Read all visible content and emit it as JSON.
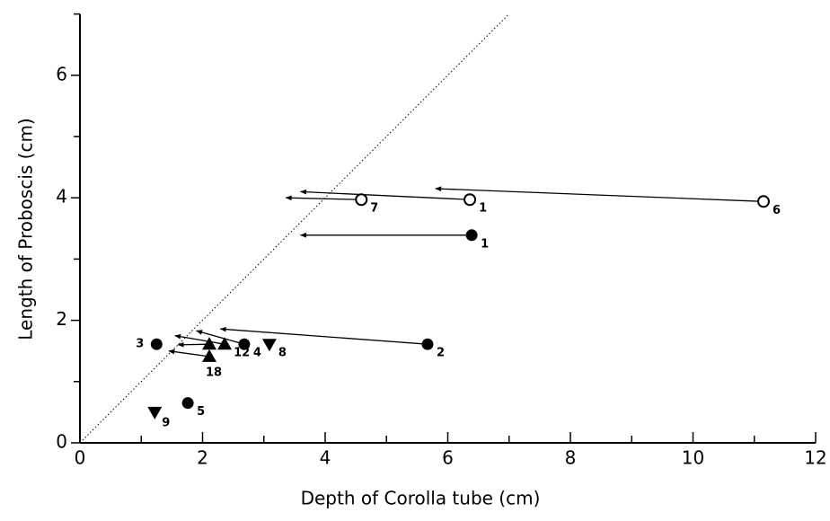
{
  "chart_data": {
    "type": "scatter",
    "xlabel": "Depth of Corolla tube (cm)",
    "ylabel": "Length of Proboscis (cm)",
    "xlim": [
      0,
      12
    ],
    "ylim": [
      0,
      7
    ],
    "xticks": [
      0,
      2,
      4,
      6,
      8,
      10,
      12
    ],
    "yticks": [
      0,
      2,
      4,
      6
    ],
    "xminorticks": [
      1,
      3,
      5,
      7,
      9,
      11
    ],
    "yminorticks": [
      1,
      3,
      5,
      7
    ],
    "reference_line": {
      "x": [
        0,
        7
      ],
      "y": [
        0,
        7
      ]
    },
    "series": [
      {
        "marker": "open-circle",
        "x": [
          4.59,
          6.36,
          11.15
        ],
        "y": [
          3.97,
          3.97,
          3.94
        ],
        "labels": [
          "7",
          "1",
          "6"
        ]
      },
      {
        "marker": "circle",
        "x": [
          6.39,
          5.67,
          1.25,
          2.68,
          1.76
        ],
        "y": [
          3.39,
          1.61,
          1.61,
          1.61,
          0.65
        ],
        "labels": [
          "1",
          "2",
          "3",
          "4",
          "5"
        ]
      },
      {
        "marker": "triangle-up",
        "x": [
          2.36,
          2.11,
          2.11
        ],
        "y": [
          1.61,
          1.61,
          1.41
        ],
        "labels": [
          "12",
          null,
          "18"
        ]
      },
      {
        "marker": "triangle-down",
        "x": [
          3.09,
          1.22
        ],
        "y": [
          1.61,
          0.5
        ],
        "labels": [
          "8",
          "9"
        ]
      }
    ],
    "arrows": {
      "x": [
        4.59,
        6.36,
        11.15,
        6.39,
        5.67,
        2.68,
        2.36,
        2.11,
        2.11
      ],
      "y": [
        3.97,
        3.97,
        3.94,
        3.39,
        1.61,
        1.61,
        1.61,
        1.61,
        1.41
      ],
      "x2": [
        3.36,
        3.6,
        5.8,
        3.6,
        2.29,
        1.9,
        1.55,
        1.6,
        1.45
      ],
      "y2": [
        4.0,
        4.1,
        4.15,
        3.39,
        1.86,
        1.83,
        1.75,
        1.6,
        1.5
      ]
    }
  }
}
